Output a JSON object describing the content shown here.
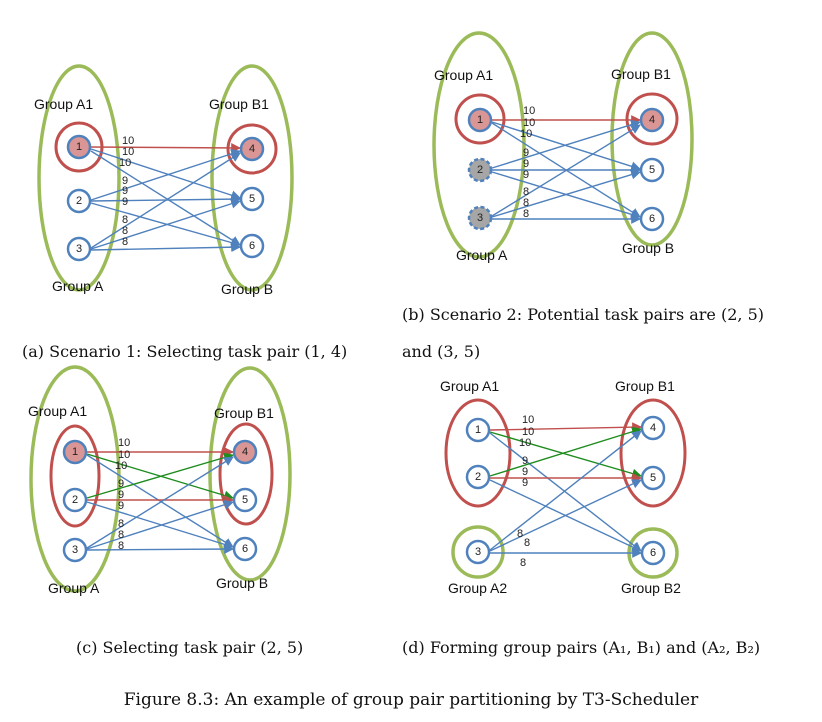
{
  "colors": {
    "group_green": "#9bbb59",
    "pair_red": "#c0504d",
    "node_blue": "#4f81bd",
    "node_red_fill": "#d99694",
    "node_gray_fill": "#a6a6a6",
    "edge_blue": "#4f81bd",
    "edge_red": "#c0504d",
    "edge_green": "#1e8c1e"
  },
  "panels": [
    {
      "caption_lines": [
        "(a) Scenario 1: Selecting task pair (1, 4)"
      ],
      "labels": [
        "Group A1",
        "Group B1",
        "Group A",
        "Group B"
      ],
      "nodes": [
        "1",
        "2",
        "3",
        "4",
        "5",
        "6"
      ],
      "weights": [
        "10",
        "10",
        "10",
        "9",
        "9",
        "9",
        "8",
        "8",
        "8"
      ]
    },
    {
      "caption_lines": [
        "(b) Scenario 2: Potential task pairs are (2, 5)",
        "and (3, 5)"
      ],
      "labels": [
        "Group A1",
        "Group B1",
        "Group A",
        "Group B"
      ],
      "nodes": [
        "1",
        "2",
        "3",
        "4",
        "5",
        "6"
      ],
      "weights": [
        "10",
        "10",
        "10",
        "9",
        "9",
        "9",
        "8",
        "8",
        "8"
      ]
    },
    {
      "caption_lines": [
        "(c) Selecting task pair (2, 5)"
      ],
      "labels": [
        "Group A1",
        "Group B1",
        "Group A",
        "Group B"
      ],
      "nodes": [
        "1",
        "2",
        "3",
        "4",
        "5",
        "6"
      ],
      "weights": [
        "10",
        "10",
        "10",
        "9",
        "9",
        "9",
        "8",
        "8",
        "8"
      ]
    },
    {
      "caption_lines": [
        "(d) Forming group pairs (A₁, B₁) and (A₂, B₂)"
      ],
      "labels": [
        "Group A1",
        "Group B1",
        "Group A2",
        "Group B2"
      ],
      "nodes": [
        "1",
        "2",
        "3",
        "4",
        "5",
        "6"
      ],
      "weights": [
        "10",
        "10",
        "10",
        "9",
        "9",
        "9",
        "8",
        "8",
        "8"
      ]
    }
  ],
  "figure_caption": "Figure 8.3: An example of group pair partitioning by T3-Scheduler"
}
